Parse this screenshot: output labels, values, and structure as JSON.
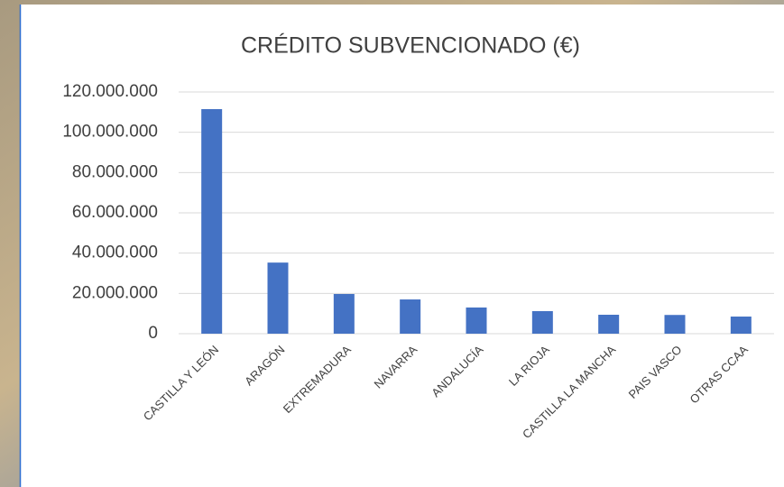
{
  "chart_data": {
    "type": "bar",
    "title": "CRÉDITO SUBVENCIONADO (€)",
    "categories": [
      "CASTILLA Y LEÓN",
      "ARAGÓN",
      "EXTREMADURA",
      "NAVARRA",
      "ANDALUCÍA",
      "LA RIOJA",
      "CASTILLA LA MANCHA",
      "PAIS VASCO",
      "OTRAS CCAA"
    ],
    "values": [
      111500000,
      35300000,
      19700000,
      17000000,
      13000000,
      11200000,
      9400000,
      9300000,
      8500000
    ],
    "color": "#4472c4",
    "ylim": [
      0,
      120000000
    ],
    "yticks": [
      0,
      {
        "value": 20000000,
        "label": "20.000.000"
      },
      {
        "value": 40000000,
        "label": "40.000.000"
      },
      {
        "value": 60000000,
        "label": "60.000.000"
      },
      {
        "value": 80000000,
        "label": "80.000.000"
      },
      {
        "value": 100000000,
        "label": "100.000.000"
      },
      {
        "value": 120000000,
        "label": "120.000.000"
      }
    ],
    "grid": true
  }
}
